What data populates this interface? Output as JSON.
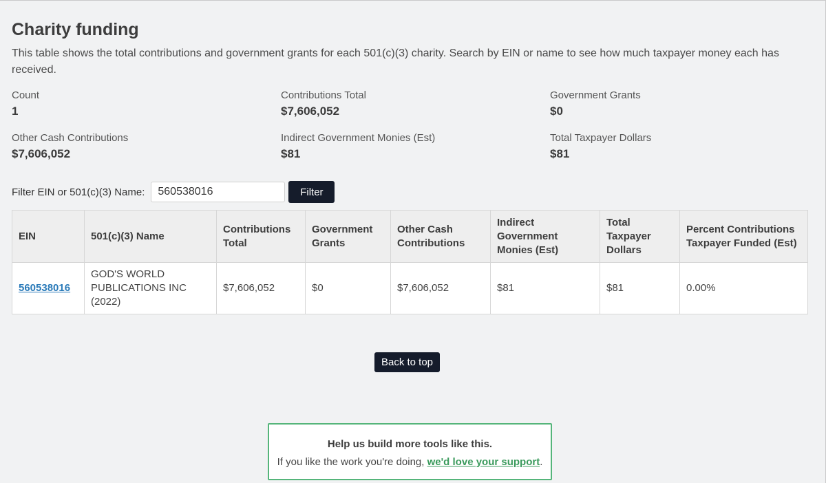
{
  "header": {
    "title": "Charity funding",
    "intro": "This table shows the total contributions and government grants for each 501(c)(3) charity. Search by EIN or name to see how much taxpayer money each has received."
  },
  "stats": [
    {
      "label": "Count",
      "value": "1"
    },
    {
      "label": "Contributions Total",
      "value": "$7,606,052"
    },
    {
      "label": "Government Grants",
      "value": "$0"
    },
    {
      "label": "Other Cash Contributions",
      "value": "$7,606,052"
    },
    {
      "label": "Indirect Government Monies (Est)",
      "value": "$81"
    },
    {
      "label": "Total Taxpayer Dollars",
      "value": "$81"
    }
  ],
  "filter": {
    "label": "Filter EIN or 501(c)(3) Name:",
    "value": "560538016",
    "button": "Filter"
  },
  "table": {
    "columns": [
      "EIN",
      "501(c)(3) Name",
      "Contributions Total",
      "Government Grants",
      "Other Cash Contributions",
      "Indirect Government Monies (Est)",
      "Total Taxpayer Dollars",
      "Percent Contributions Taxpayer Funded (Est)"
    ],
    "rows": [
      [
        "560538016",
        "GOD'S WORLD PUBLICATIONS INC (2022)",
        "$7,606,052",
        "$0",
        "$7,606,052",
        "$81",
        "$81",
        "0.00%"
      ]
    ]
  },
  "back_to_top": "Back to top",
  "support": {
    "title": "Help us build more tools like this.",
    "text_before": "If you like the work you're doing, ",
    "link": "we'd love your support",
    "text_after": "."
  },
  "colors": {
    "button_bg": "#151c2b",
    "link_blue": "#2b7bb9",
    "support_green": "#55b57a"
  }
}
